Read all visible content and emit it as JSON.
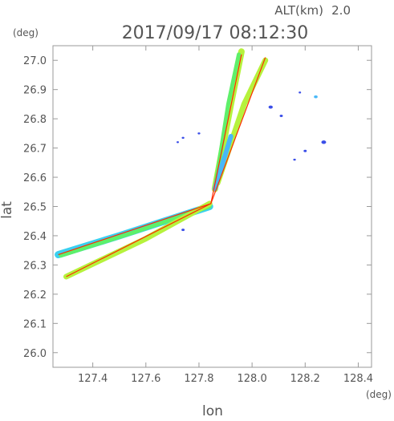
{
  "header": {
    "alt_label": "ALT(km)",
    "alt_value": "2.0",
    "timestamp": "2017/09/17 08:12:30"
  },
  "chart_data": {
    "type": "scatter",
    "x_unit": "(deg)",
    "y_unit": "(deg)",
    "xlabel": "lon",
    "ylabel": "lat",
    "xlim": [
      127.25,
      128.45
    ],
    "ylim": [
      25.95,
      27.05
    ],
    "x_ticks": [
      "127.4",
      "127.6",
      "127.8",
      "128.0",
      "128.2",
      "128.4"
    ],
    "y_ticks": [
      "26.0",
      "26.1",
      "26.2",
      "26.3",
      "26.4",
      "26.5",
      "26.6",
      "26.7",
      "26.8",
      "26.9",
      "27.0"
    ],
    "colors": {
      "red_line": "#ff2a00",
      "lime": "#b6f23c",
      "green": "#5ef06a",
      "cyan": "#3ad0f0",
      "blue": "#3a4ee8",
      "sky": "#48b8f8"
    },
    "lines": [
      {
        "color": "red_line",
        "points": [
          [
            127.845,
            26.51
          ],
          [
            127.27,
            26.335
          ]
        ]
      },
      {
        "color": "red_line",
        "points": [
          [
            127.845,
            26.51
          ],
          [
            127.3,
            26.26
          ]
        ]
      },
      {
        "color": "red_line",
        "points": [
          [
            127.845,
            26.51
          ],
          [
            127.96,
            27.02
          ]
        ]
      },
      {
        "color": "red_line",
        "points": [
          [
            127.845,
            26.51
          ],
          [
            128.05,
            27.01
          ]
        ]
      }
    ],
    "bands": [
      {
        "color": "cyan",
        "width": 9,
        "points": [
          [
            127.27,
            26.335
          ],
          [
            127.5,
            26.4
          ],
          [
            127.84,
            26.5
          ]
        ]
      },
      {
        "color": "green",
        "width": 5,
        "points": [
          [
            127.28,
            26.332
          ],
          [
            127.55,
            26.41
          ],
          [
            127.84,
            26.5
          ]
        ]
      },
      {
        "color": "lime",
        "width": 7,
        "points": [
          [
            127.3,
            26.26
          ],
          [
            127.6,
            26.39
          ],
          [
            127.84,
            26.51
          ]
        ]
      },
      {
        "color": "lime",
        "width": 8,
        "points": [
          [
            127.86,
            26.56
          ],
          [
            127.92,
            26.85
          ],
          [
            127.96,
            27.03
          ]
        ]
      },
      {
        "color": "green",
        "width": 5,
        "points": [
          [
            127.86,
            26.56
          ],
          [
            127.91,
            26.85
          ],
          [
            127.95,
            27.02
          ]
        ]
      },
      {
        "color": "lime",
        "width": 7,
        "points": [
          [
            127.87,
            26.58
          ],
          [
            127.97,
            26.85
          ],
          [
            128.05,
            27.0
          ]
        ]
      },
      {
        "color": "sky",
        "width": 6,
        "points": [
          [
            127.86,
            26.56
          ],
          [
            127.92,
            26.74
          ]
        ]
      }
    ],
    "blobs": [
      {
        "color": "blue",
        "x": 128.07,
        "y": 26.84,
        "r": 0.008
      },
      {
        "color": "blue",
        "x": 128.11,
        "y": 26.81,
        "r": 0.006
      },
      {
        "color": "blue",
        "x": 128.18,
        "y": 26.89,
        "r": 0.004
      },
      {
        "color": "sky",
        "x": 128.24,
        "y": 26.875,
        "r": 0.007
      },
      {
        "color": "blue",
        "x": 128.27,
        "y": 26.72,
        "r": 0.009
      },
      {
        "color": "blue",
        "x": 128.2,
        "y": 26.69,
        "r": 0.006
      },
      {
        "color": "blue",
        "x": 128.16,
        "y": 26.66,
        "r": 0.005
      },
      {
        "color": "blue",
        "x": 127.74,
        "y": 26.735,
        "r": 0.005
      },
      {
        "color": "blue",
        "x": 127.8,
        "y": 26.75,
        "r": 0.005
      },
      {
        "color": "blue",
        "x": 127.74,
        "y": 26.42,
        "r": 0.006
      },
      {
        "color": "blue",
        "x": 127.72,
        "y": 26.72,
        "r": 0.003
      }
    ]
  }
}
